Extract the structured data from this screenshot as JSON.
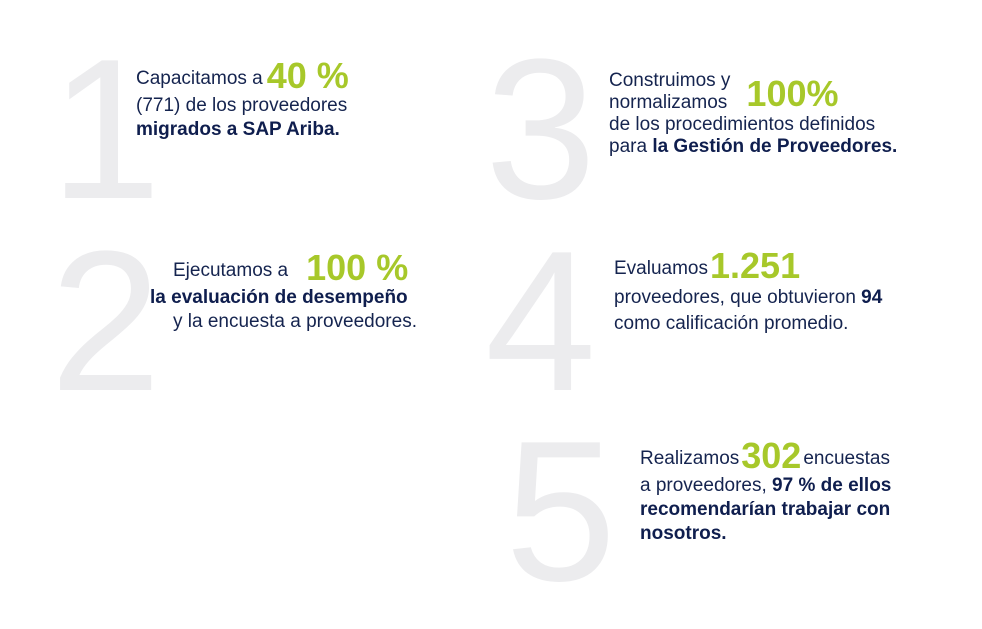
{
  "items": [
    {
      "number": "1",
      "pre": "Capacitamos a ",
      "highlight": "40 %",
      "line2": "(771) de los proveedores",
      "bold": "migrados a SAP Ariba."
    },
    {
      "number": "2",
      "pre": "Ejecutamos a",
      "highlight": "100 %",
      "bold": "la evaluación de desempeño",
      "line3": "y la encuesta a proveedores."
    },
    {
      "number": "3",
      "line1": "Construimos y",
      "line2": "normalizamos",
      "highlight": "100%",
      "line3": "de los procedimientos definidos",
      "pre4": "para ",
      "bold": "la Gestión de Proveedores."
    },
    {
      "number": "4",
      "pre": "Evaluamos ",
      "highlight": "1.251",
      "line2": "proveedores, que obtuvieron ",
      "bold": "94",
      "line3": "como calificación promedio."
    },
    {
      "number": "5",
      "pre": "Realizamos ",
      "highlight": "302",
      "post": " encuestas",
      "line2": "a proveedores, ",
      "bold1": "97 % de ellos",
      "bold2": "recomendarían trabajar con",
      "bold3": "nosotros."
    }
  ]
}
